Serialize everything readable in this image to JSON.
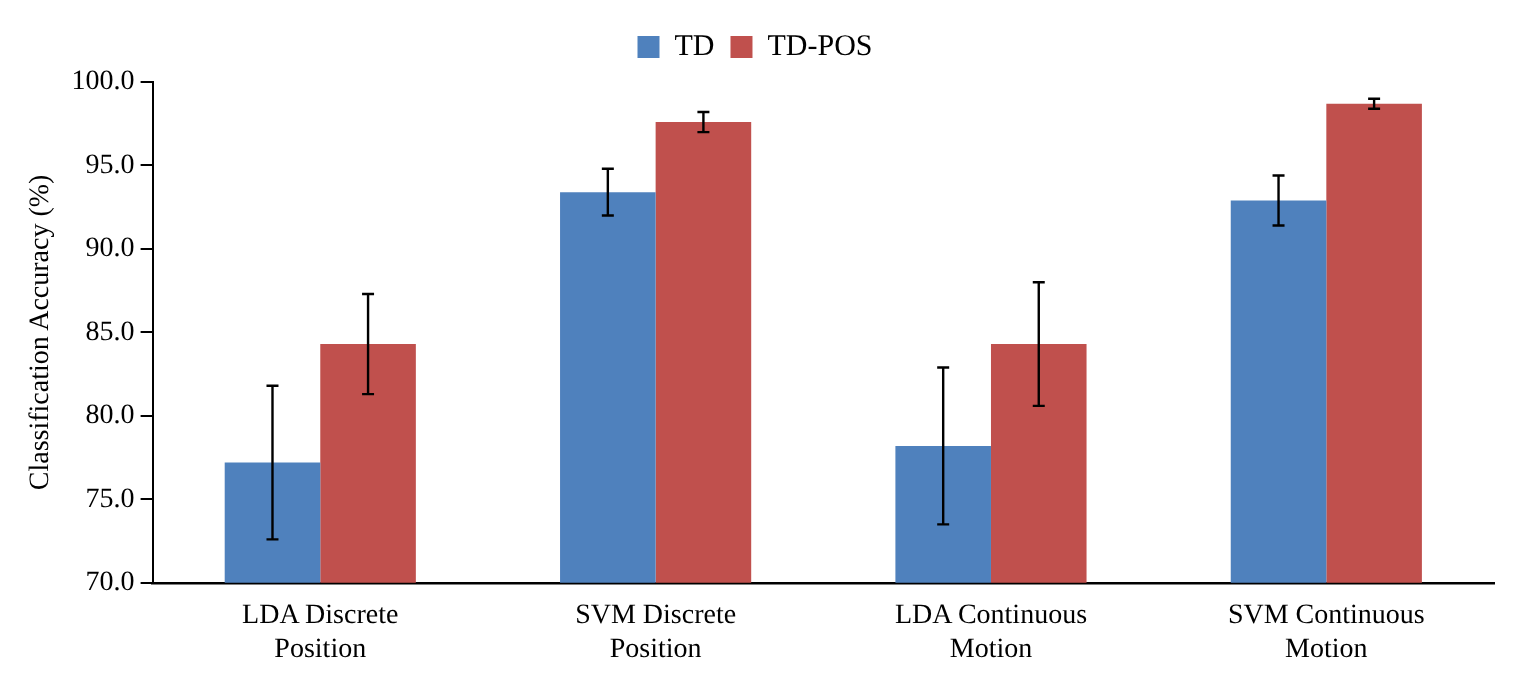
{
  "chart_data": {
    "type": "bar",
    "ylabel": "Classification Accuracy (%)",
    "categories": [
      "LDA Discrete Position",
      "SVM Discrete Position",
      "LDA Continuous Motion",
      "SVM Continuous Motion"
    ],
    "series": [
      {
        "name": "TD",
        "color": "#4f81bd",
        "values": [
          77.2,
          93.4,
          78.2,
          92.9
        ],
        "errors": [
          4.6,
          1.4,
          4.7,
          1.5
        ]
      },
      {
        "name": "TD-POS",
        "color": "#c0504d",
        "values": [
          84.3,
          97.6,
          84.3,
          98.7
        ],
        "errors": [
          3.0,
          0.6,
          3.7,
          0.3
        ]
      }
    ],
    "ylim": [
      70,
      100
    ],
    "yticks": [
      {
        "value": 70,
        "label": "70.0"
      },
      {
        "value": 75,
        "label": "75.0"
      },
      {
        "value": 80,
        "label": "80.0"
      },
      {
        "value": 85,
        "label": "85.0"
      },
      {
        "value": 90,
        "label": "90.0"
      },
      {
        "value": 95,
        "label": "95.0"
      },
      {
        "value": 100,
        "label": "100.0"
      }
    ],
    "grid": false,
    "legend": "top"
  }
}
